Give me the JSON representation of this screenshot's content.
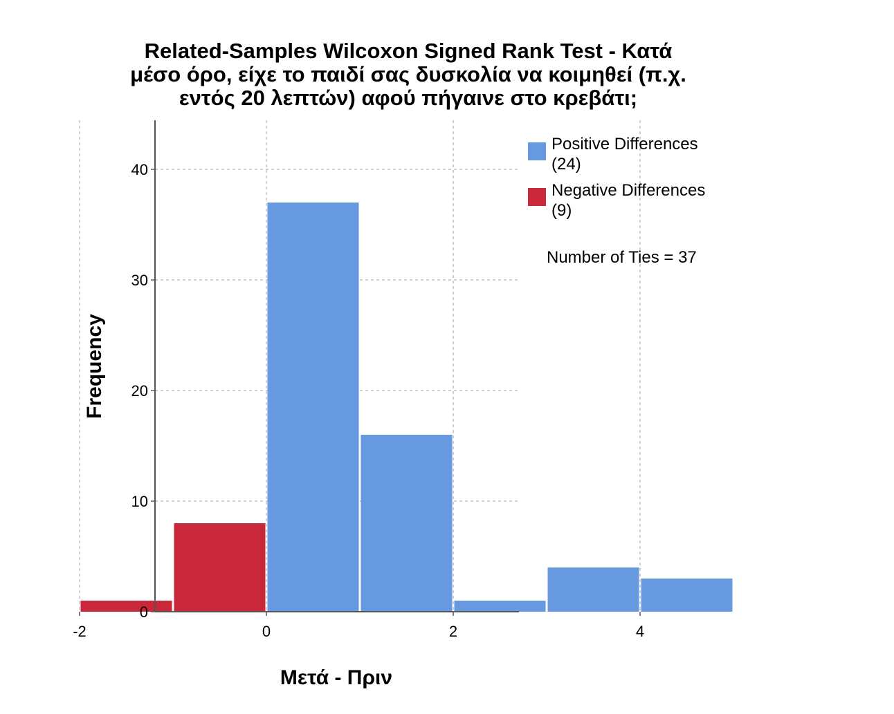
{
  "chart_data": {
    "type": "bar",
    "title_lines": [
      "Related-Samples Wilcoxon Signed Rank Test - Κατά",
      "μέσο όρο, είχε το παιδί σας δυσκολία να κοιμηθεί (π.χ.",
      "εντός 20 λεπτών) αφού πήγαινε στο κρεβάτι;"
    ],
    "xlabel": "Μετά - Πριν",
    "ylabel": "Frequency",
    "xlim": [
      -2.0,
      5.4
    ],
    "ylim": [
      0,
      44
    ],
    "x_ticks": [
      -2,
      0,
      2,
      4
    ],
    "x_tick_labels": [
      "-2",
      "0",
      "2",
      "4"
    ],
    "y_ticks": [
      0,
      10,
      20,
      30,
      40
    ],
    "y_tick_labels": [
      "0",
      "10",
      "20",
      "30",
      "40"
    ],
    "grid": true,
    "legend_position": "top-right",
    "series": [
      {
        "name": "Positive Differences",
        "count_label": "(24)",
        "color": "#6699e0",
        "bins": [
          {
            "from": 0,
            "to": 1,
            "value": 37
          },
          {
            "from": 1,
            "to": 2,
            "value": 16
          },
          {
            "from": 2,
            "to": 3,
            "value": 1
          },
          {
            "from": 3,
            "to": 4,
            "value": 4
          },
          {
            "from": 4,
            "to": 5,
            "value": 3
          }
        ]
      },
      {
        "name": "Negative Differences",
        "count_label": "(9)",
        "color": "#c8283a",
        "bins": [
          {
            "from": -2,
            "to": -1,
            "value": 1
          },
          {
            "from": -1,
            "to": 0,
            "value": 8
          }
        ]
      }
    ],
    "annotation": "Number of Ties = 37"
  }
}
